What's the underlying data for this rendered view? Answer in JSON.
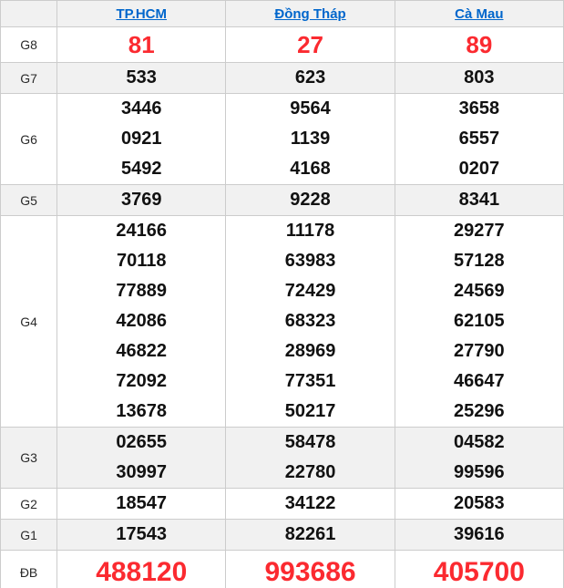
{
  "table": {
    "name": "lottery-results",
    "columns": [
      {
        "id": "tphcm",
        "label": "TP.HCM"
      },
      {
        "id": "dong-thap",
        "label": "Đồng Tháp"
      },
      {
        "id": "ca-mau",
        "label": "Cà Mau"
      }
    ],
    "rows": [
      {
        "label": "G8",
        "type": "g8",
        "cells": [
          [
            "81"
          ],
          [
            "27"
          ],
          [
            "89"
          ]
        ]
      },
      {
        "label": "G7",
        "type": "normal",
        "cells": [
          [
            "533"
          ],
          [
            "623"
          ],
          [
            "803"
          ]
        ]
      },
      {
        "label": "G6",
        "type": "normal",
        "cells": [
          [
            "3446",
            "0921",
            "5492"
          ],
          [
            "9564",
            "1139",
            "4168"
          ],
          [
            "3658",
            "6557",
            "0207"
          ]
        ]
      },
      {
        "label": "G5",
        "type": "normal",
        "cells": [
          [
            "3769"
          ],
          [
            "9228"
          ],
          [
            "8341"
          ]
        ]
      },
      {
        "label": "G4",
        "type": "normal",
        "cells": [
          [
            "24166",
            "70118",
            "77889",
            "42086",
            "46822",
            "72092",
            "13678"
          ],
          [
            "11178",
            "63983",
            "72429",
            "68323",
            "28969",
            "77351",
            "50217"
          ],
          [
            "29277",
            "57128",
            "24569",
            "62105",
            "27790",
            "46647",
            "25296"
          ]
        ]
      },
      {
        "label": "G3",
        "type": "normal",
        "cells": [
          [
            "02655",
            "30997"
          ],
          [
            "58478",
            "22780"
          ],
          [
            "04582",
            "99596"
          ]
        ]
      },
      {
        "label": "G2",
        "type": "normal",
        "cells": [
          [
            "18547"
          ],
          [
            "34122"
          ],
          [
            "20583"
          ]
        ]
      },
      {
        "label": "G1",
        "type": "normal",
        "cells": [
          [
            "17543"
          ],
          [
            "82261"
          ],
          [
            "39616"
          ]
        ]
      },
      {
        "label": "ĐB",
        "type": "db",
        "cells": [
          [
            "488120"
          ],
          [
            "993686"
          ],
          [
            "405700"
          ]
        ]
      }
    ]
  },
  "colors": {
    "highlight_red": "#fb2a30",
    "link_blue": "#0066cc",
    "row_alt_bg": "#f1f1f1",
    "border": "#cccccc",
    "number_black": "#111111"
  }
}
